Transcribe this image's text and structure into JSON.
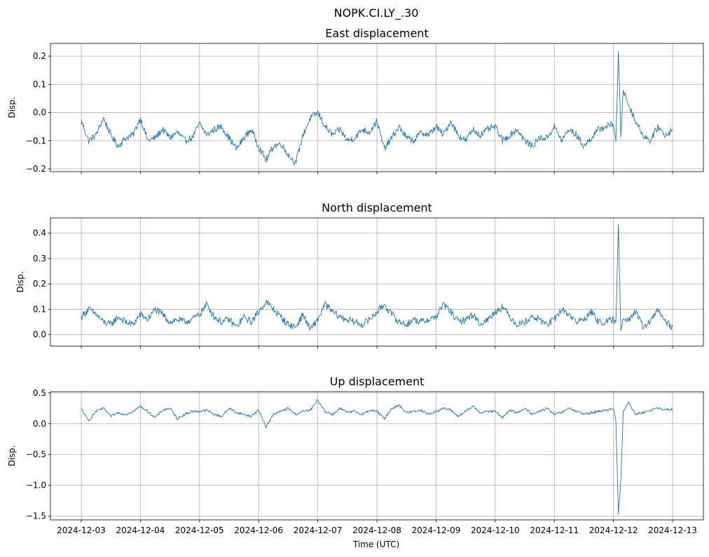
{
  "figure": {
    "title": "NOPK.CI.LY_.30",
    "xlabel": "Time (UTC)",
    "line_color": "#1f77b4",
    "grid_color": "#b0b0b0"
  },
  "chart_data": [
    {
      "type": "line",
      "title": "East displacement",
      "ylabel": "Disp.",
      "xlim": [
        "2024-12-02T11:30",
        "2024-12-13T12:30"
      ],
      "ylim": [
        -0.21,
        0.245
      ],
      "yticks": [
        -0.2,
        -0.1,
        0.0,
        0.1,
        0.2
      ],
      "yticklabels": [
        "−0.2",
        "−0.1",
        "0.0",
        "0.1",
        "0.2"
      ],
      "xticks": [
        "2024-12-03",
        "2024-12-04",
        "2024-12-05",
        "2024-12-06",
        "2024-12-07",
        "2024-12-08",
        "2024-12-09",
        "2024-12-10",
        "2024-12-11",
        "2024-12-12",
        "2024-12-13"
      ],
      "show_xticklabels": false,
      "grid": true,
      "noise": 0.012,
      "series": [
        {
          "x": [
            "2024-12-03T00:00",
            "2024-12-03T03:00",
            "2024-12-03T06:00",
            "2024-12-03T09:00",
            "2024-12-03T12:00",
            "2024-12-03T15:00",
            "2024-12-03T18:00",
            "2024-12-03T21:00",
            "2024-12-04T00:00",
            "2024-12-04T03:00",
            "2024-12-04T06:00",
            "2024-12-04T09:00",
            "2024-12-04T12:00",
            "2024-12-04T15:00",
            "2024-12-04T18:00",
            "2024-12-04T21:00",
            "2024-12-05T00:00",
            "2024-12-05T03:00",
            "2024-12-05T06:00",
            "2024-12-05T09:00",
            "2024-12-05T12:00",
            "2024-12-05T15:00",
            "2024-12-05T18:00",
            "2024-12-05T21:00",
            "2024-12-06T00:00",
            "2024-12-06T03:00",
            "2024-12-06T06:00",
            "2024-12-06T09:00",
            "2024-12-06T12:00",
            "2024-12-06T15:00",
            "2024-12-06T18:00",
            "2024-12-06T21:00",
            "2024-12-07T00:00",
            "2024-12-07T03:00",
            "2024-12-07T06:00",
            "2024-12-07T09:00",
            "2024-12-07T12:00",
            "2024-12-07T15:00",
            "2024-12-07T18:00",
            "2024-12-07T21:00",
            "2024-12-08T00:00",
            "2024-12-08T03:00",
            "2024-12-08T06:00",
            "2024-12-08T09:00",
            "2024-12-08T12:00",
            "2024-12-08T15:00",
            "2024-12-08T18:00",
            "2024-12-08T21:00",
            "2024-12-09T00:00",
            "2024-12-09T03:00",
            "2024-12-09T06:00",
            "2024-12-09T09:00",
            "2024-12-09T12:00",
            "2024-12-09T15:00",
            "2024-12-09T18:00",
            "2024-12-09T21:00",
            "2024-12-10T00:00",
            "2024-12-10T03:00",
            "2024-12-10T06:00",
            "2024-12-10T09:00",
            "2024-12-10T12:00",
            "2024-12-10T15:00",
            "2024-12-10T18:00",
            "2024-12-10T21:00",
            "2024-12-11T00:00",
            "2024-12-11T03:00",
            "2024-12-11T06:00",
            "2024-12-11T09:00",
            "2024-12-11T12:00",
            "2024-12-11T15:00",
            "2024-12-11T18:00",
            "2024-12-11T21:00",
            "2024-12-12T00:00",
            "2024-12-12T01:00",
            "2024-12-12T02:00",
            "2024-12-12T03:00",
            "2024-12-12T04:00",
            "2024-12-12T06:00",
            "2024-12-12T09:00",
            "2024-12-12T12:00",
            "2024-12-12T15:00",
            "2024-12-12T18:00",
            "2024-12-12T21:00",
            "2024-12-13T00:00"
          ],
          "y": [
            -0.03,
            -0.1,
            -0.08,
            -0.02,
            -0.08,
            -0.12,
            -0.09,
            -0.08,
            -0.02,
            -0.1,
            -0.09,
            -0.06,
            -0.09,
            -0.07,
            -0.1,
            -0.09,
            -0.04,
            -0.08,
            -0.06,
            -0.05,
            -0.09,
            -0.13,
            -0.09,
            -0.06,
            -0.12,
            -0.17,
            -0.12,
            -0.11,
            -0.15,
            -0.18,
            -0.08,
            -0.02,
            0.0,
            -0.05,
            -0.08,
            -0.06,
            -0.1,
            -0.09,
            -0.06,
            -0.07,
            -0.03,
            -0.13,
            -0.09,
            -0.05,
            -0.09,
            -0.1,
            -0.07,
            -0.08,
            -0.05,
            -0.08,
            -0.03,
            -0.08,
            -0.1,
            -0.06,
            -0.08,
            -0.06,
            -0.05,
            -0.1,
            -0.08,
            -0.06,
            -0.1,
            -0.12,
            -0.09,
            -0.09,
            -0.05,
            -0.1,
            -0.06,
            -0.08,
            -0.12,
            -0.09,
            -0.06,
            -0.05,
            -0.04,
            -0.1,
            0.21,
            -0.08,
            0.08,
            0.03,
            -0.03,
            -0.08,
            -0.1,
            -0.05,
            -0.08,
            -0.06
          ]
        }
      ]
    },
    {
      "type": "line",
      "title": "North displacement",
      "ylabel": "Disp.",
      "xlim": [
        "2024-12-02T11:30",
        "2024-12-13T12:30"
      ],
      "ylim": [
        -0.045,
        0.46
      ],
      "yticks": [
        0.0,
        0.1,
        0.2,
        0.3,
        0.4
      ],
      "yticklabels": [
        "0.0",
        "0.1",
        "0.2",
        "0.3",
        "0.4"
      ],
      "xticks": [
        "2024-12-03",
        "2024-12-04",
        "2024-12-05",
        "2024-12-06",
        "2024-12-07",
        "2024-12-08",
        "2024-12-09",
        "2024-12-10",
        "2024-12-11",
        "2024-12-12",
        "2024-12-13"
      ],
      "show_xticklabels": false,
      "grid": true,
      "noise": 0.014,
      "series": [
        {
          "x": [
            "2024-12-03T00:00",
            "2024-12-03T03:00",
            "2024-12-03T06:00",
            "2024-12-03T09:00",
            "2024-12-03T12:00",
            "2024-12-03T15:00",
            "2024-12-03T18:00",
            "2024-12-03T21:00",
            "2024-12-04T00:00",
            "2024-12-04T03:00",
            "2024-12-04T06:00",
            "2024-12-04T09:00",
            "2024-12-04T12:00",
            "2024-12-04T15:00",
            "2024-12-04T18:00",
            "2024-12-04T21:00",
            "2024-12-05T00:00",
            "2024-12-05T03:00",
            "2024-12-05T06:00",
            "2024-12-05T09:00",
            "2024-12-05T12:00",
            "2024-12-05T15:00",
            "2024-12-05T18:00",
            "2024-12-05T21:00",
            "2024-12-06T00:00",
            "2024-12-06T03:00",
            "2024-12-06T06:00",
            "2024-12-06T09:00",
            "2024-12-06T12:00",
            "2024-12-06T15:00",
            "2024-12-06T18:00",
            "2024-12-06T21:00",
            "2024-12-07T00:00",
            "2024-12-07T03:00",
            "2024-12-07T06:00",
            "2024-12-07T09:00",
            "2024-12-07T12:00",
            "2024-12-07T15:00",
            "2024-12-07T18:00",
            "2024-12-07T21:00",
            "2024-12-08T00:00",
            "2024-12-08T03:00",
            "2024-12-08T06:00",
            "2024-12-08T09:00",
            "2024-12-08T12:00",
            "2024-12-08T15:00",
            "2024-12-08T18:00",
            "2024-12-08T21:00",
            "2024-12-09T00:00",
            "2024-12-09T03:00",
            "2024-12-09T06:00",
            "2024-12-09T09:00",
            "2024-12-09T12:00",
            "2024-12-09T15:00",
            "2024-12-09T18:00",
            "2024-12-09T21:00",
            "2024-12-10T00:00",
            "2024-12-10T03:00",
            "2024-12-10T06:00",
            "2024-12-10T09:00",
            "2024-12-10T12:00",
            "2024-12-10T15:00",
            "2024-12-10T18:00",
            "2024-12-10T21:00",
            "2024-12-11T00:00",
            "2024-12-11T03:00",
            "2024-12-11T06:00",
            "2024-12-11T09:00",
            "2024-12-11T12:00",
            "2024-12-11T15:00",
            "2024-12-11T18:00",
            "2024-12-11T21:00",
            "2024-12-12T00:00",
            "2024-12-12T01:00",
            "2024-12-12T02:00",
            "2024-12-12T03:00",
            "2024-12-12T04:00",
            "2024-12-12T06:00",
            "2024-12-12T09:00",
            "2024-12-12T12:00",
            "2024-12-12T15:00",
            "2024-12-12T18:00",
            "2024-12-12T21:00",
            "2024-12-13T00:00"
          ],
          "y": [
            0.07,
            0.1,
            0.08,
            0.05,
            0.04,
            0.07,
            0.05,
            0.04,
            0.08,
            0.06,
            0.1,
            0.08,
            0.05,
            0.06,
            0.05,
            0.06,
            0.08,
            0.12,
            0.07,
            0.05,
            0.06,
            0.03,
            0.07,
            0.05,
            0.09,
            0.13,
            0.1,
            0.07,
            0.04,
            0.03,
            0.08,
            0.02,
            0.06,
            0.12,
            0.09,
            0.07,
            0.06,
            0.05,
            0.04,
            0.06,
            0.09,
            0.12,
            0.08,
            0.05,
            0.04,
            0.06,
            0.05,
            0.06,
            0.07,
            0.12,
            0.09,
            0.05,
            0.06,
            0.08,
            0.04,
            0.06,
            0.09,
            0.11,
            0.07,
            0.04,
            0.05,
            0.07,
            0.06,
            0.04,
            0.06,
            0.1,
            0.08,
            0.05,
            0.06,
            0.09,
            0.05,
            0.05,
            0.06,
            0.04,
            0.43,
            0.02,
            0.07,
            0.06,
            0.09,
            0.03,
            0.05,
            0.1,
            0.05,
            0.03
          ]
        }
      ]
    },
    {
      "type": "line",
      "title": "Up displacement",
      "ylabel": "Disp.",
      "xlim": [
        "2024-12-02T11:30",
        "2024-12-13T12:30"
      ],
      "ylim": [
        -1.56,
        0.52
      ],
      "yticks": [
        -1.5,
        -1.0,
        -0.5,
        0.0,
        0.5
      ],
      "yticklabels": [
        "−1.5",
        "−1.0",
        "−0.5",
        "0.0",
        "0.5"
      ],
      "xticks": [
        "2024-12-03",
        "2024-12-04",
        "2024-12-05",
        "2024-12-06",
        "2024-12-07",
        "2024-12-08",
        "2024-12-09",
        "2024-12-10",
        "2024-12-11",
        "2024-12-12",
        "2024-12-13"
      ],
      "xticklabels": [
        "2024-12-03",
        "2024-12-04",
        "2024-12-05",
        "2024-12-06",
        "2024-12-07",
        "2024-12-08",
        "2024-12-09",
        "2024-12-10",
        "2024-12-11",
        "2024-12-12",
        "2024-12-13"
      ],
      "show_xticklabels": true,
      "grid": true,
      "noise": 0.02,
      "series": [
        {
          "x": [
            "2024-12-03T00:00",
            "2024-12-03T03:00",
            "2024-12-03T06:00",
            "2024-12-03T09:00",
            "2024-12-03T12:00",
            "2024-12-03T15:00",
            "2024-12-03T18:00",
            "2024-12-03T21:00",
            "2024-12-04T00:00",
            "2024-12-04T03:00",
            "2024-12-04T06:00",
            "2024-12-04T09:00",
            "2024-12-04T12:00",
            "2024-12-04T15:00",
            "2024-12-04T18:00",
            "2024-12-04T21:00",
            "2024-12-05T00:00",
            "2024-12-05T03:00",
            "2024-12-05T06:00",
            "2024-12-05T09:00",
            "2024-12-05T12:00",
            "2024-12-05T15:00",
            "2024-12-05T18:00",
            "2024-12-05T21:00",
            "2024-12-06T00:00",
            "2024-12-06T03:00",
            "2024-12-06T06:00",
            "2024-12-06T09:00",
            "2024-12-06T12:00",
            "2024-12-06T15:00",
            "2024-12-06T18:00",
            "2024-12-06T21:00",
            "2024-12-07T00:00",
            "2024-12-07T03:00",
            "2024-12-07T06:00",
            "2024-12-07T09:00",
            "2024-12-07T12:00",
            "2024-12-07T15:00",
            "2024-12-07T18:00",
            "2024-12-07T21:00",
            "2024-12-08T00:00",
            "2024-12-08T03:00",
            "2024-12-08T06:00",
            "2024-12-08T09:00",
            "2024-12-08T12:00",
            "2024-12-08T15:00",
            "2024-12-08T18:00",
            "2024-12-08T21:00",
            "2024-12-09T00:00",
            "2024-12-09T03:00",
            "2024-12-09T06:00",
            "2024-12-09T09:00",
            "2024-12-09T12:00",
            "2024-12-09T15:00",
            "2024-12-09T18:00",
            "2024-12-09T21:00",
            "2024-12-10T00:00",
            "2024-12-10T03:00",
            "2024-12-10T06:00",
            "2024-12-10T09:00",
            "2024-12-10T12:00",
            "2024-12-10T15:00",
            "2024-12-10T18:00",
            "2024-12-10T21:00",
            "2024-12-11T00:00",
            "2024-12-11T03:00",
            "2024-12-11T06:00",
            "2024-12-11T09:00",
            "2024-12-11T12:00",
            "2024-12-11T15:00",
            "2024-12-11T18:00",
            "2024-12-11T21:00",
            "2024-12-12T00:00",
            "2024-12-12T01:00",
            "2024-12-12T02:00",
            "2024-12-12T03:00",
            "2024-12-12T04:00",
            "2024-12-12T06:00",
            "2024-12-12T09:00",
            "2024-12-12T12:00",
            "2024-12-12T15:00",
            "2024-12-12T18:00",
            "2024-12-12T21:00",
            "2024-12-13T00:00"
          ],
          "y": [
            0.24,
            0.05,
            0.2,
            0.25,
            0.12,
            0.18,
            0.15,
            0.2,
            0.28,
            0.2,
            0.1,
            0.22,
            0.25,
            0.08,
            0.15,
            0.2,
            0.2,
            0.22,
            0.15,
            0.12,
            0.25,
            0.18,
            0.15,
            0.12,
            0.22,
            -0.05,
            0.15,
            0.2,
            0.25,
            0.15,
            0.2,
            0.22,
            0.38,
            0.2,
            0.15,
            0.25,
            0.18,
            0.2,
            0.15,
            0.22,
            0.2,
            0.08,
            0.25,
            0.3,
            0.18,
            0.2,
            0.22,
            0.15,
            0.2,
            0.25,
            0.22,
            0.12,
            0.2,
            0.28,
            0.18,
            0.2,
            0.2,
            0.1,
            0.22,
            0.18,
            0.25,
            0.15,
            0.2,
            0.25,
            0.15,
            0.18,
            0.25,
            0.2,
            0.15,
            0.18,
            0.2,
            0.22,
            0.25,
            0.05,
            -1.47,
            -0.9,
            0.2,
            0.35,
            0.15,
            0.18,
            0.22,
            0.25,
            0.22,
            0.24
          ]
        }
      ]
    }
  ]
}
